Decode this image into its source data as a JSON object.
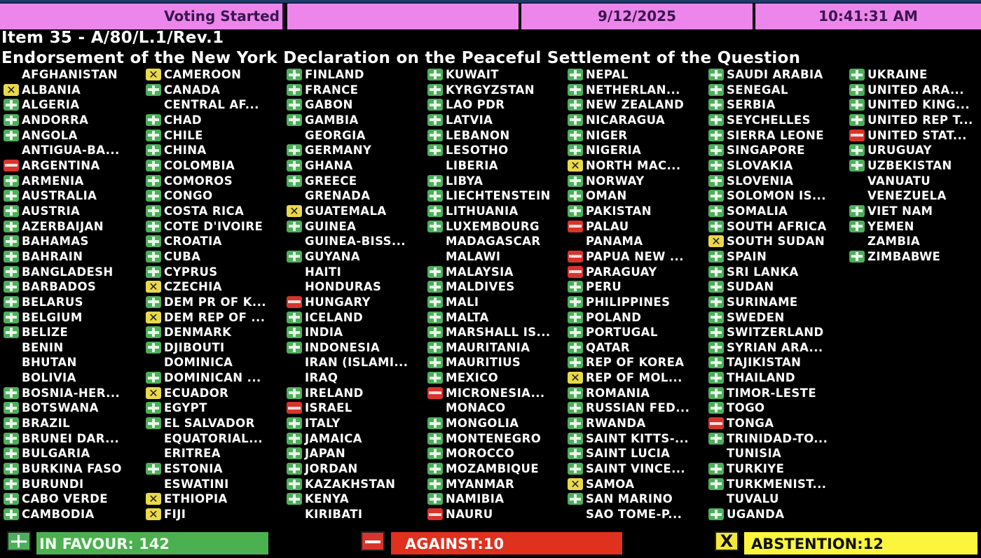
{
  "header": {
    "status": "Voting Started",
    "date": "9/12/2025",
    "time": "10:41:31 AM",
    "bar_color": "#ec86ea"
  },
  "item": {
    "number_line": "Item 35 - A/80/L.1/Rev.1",
    "title": "Endorsement of the New York Declaration on the Peaceful Settlement of the Question"
  },
  "vote_legend": {
    "Y": "plus-icon (in favour, green)",
    "N": "minus-icon (against, red)",
    "A": "x-icon (abstention, yellow)",
    "": "no vote recorded"
  },
  "colors": {
    "in_favour": "#4caf50",
    "against": "#e0301e",
    "abstention": "#fbf63c"
  },
  "columns": [
    [
      {
        "name": "AFGHANISTAN",
        "vote": ""
      },
      {
        "name": "ALBANIA",
        "vote": "A"
      },
      {
        "name": "ALGERIA",
        "vote": "Y"
      },
      {
        "name": "ANDORRA",
        "vote": "Y"
      },
      {
        "name": "ANGOLA",
        "vote": "Y"
      },
      {
        "name": "ANTIGUA-BA...",
        "vote": ""
      },
      {
        "name": "ARGENTINA",
        "vote": "N"
      },
      {
        "name": "ARMENIA",
        "vote": "Y"
      },
      {
        "name": "AUSTRALIA",
        "vote": "Y"
      },
      {
        "name": "AUSTRIA",
        "vote": "Y"
      },
      {
        "name": "AZERBAIJAN",
        "vote": "Y"
      },
      {
        "name": "BAHAMAS",
        "vote": "Y"
      },
      {
        "name": "BAHRAIN",
        "vote": "Y"
      },
      {
        "name": "BANGLADESH",
        "vote": "Y"
      },
      {
        "name": "BARBADOS",
        "vote": "Y"
      },
      {
        "name": "BELARUS",
        "vote": "Y"
      },
      {
        "name": "BELGIUM",
        "vote": "Y"
      },
      {
        "name": "BELIZE",
        "vote": "Y"
      },
      {
        "name": "BENIN",
        "vote": ""
      },
      {
        "name": "BHUTAN",
        "vote": ""
      },
      {
        "name": "BOLIVIA",
        "vote": ""
      },
      {
        "name": "BOSNIA-HER...",
        "vote": "Y"
      },
      {
        "name": "BOTSWANA",
        "vote": "Y"
      },
      {
        "name": "BRAZIL",
        "vote": "Y"
      },
      {
        "name": "BRUNEI DAR...",
        "vote": "Y"
      },
      {
        "name": "BULGARIA",
        "vote": "Y"
      },
      {
        "name": "BURKINA FASO",
        "vote": "Y"
      },
      {
        "name": "BURUNDI",
        "vote": "Y"
      },
      {
        "name": "CABO VERDE",
        "vote": "Y"
      },
      {
        "name": "CAMBODIA",
        "vote": "Y"
      }
    ],
    [
      {
        "name": "CAMEROON",
        "vote": "A"
      },
      {
        "name": "CANADA",
        "vote": "Y"
      },
      {
        "name": "CENTRAL AF...",
        "vote": ""
      },
      {
        "name": "CHAD",
        "vote": "Y"
      },
      {
        "name": "CHILE",
        "vote": "Y"
      },
      {
        "name": "CHINA",
        "vote": "Y"
      },
      {
        "name": "COLOMBIA",
        "vote": "Y"
      },
      {
        "name": "COMOROS",
        "vote": "Y"
      },
      {
        "name": "CONGO",
        "vote": "Y"
      },
      {
        "name": "COSTA RICA",
        "vote": "Y"
      },
      {
        "name": "COTE D'IVOIRE",
        "vote": "Y"
      },
      {
        "name": "CROATIA",
        "vote": "Y"
      },
      {
        "name": "CUBA",
        "vote": "Y"
      },
      {
        "name": "CYPRUS",
        "vote": "Y"
      },
      {
        "name": "CZECHIA",
        "vote": "A"
      },
      {
        "name": "DEM PR OF K...",
        "vote": "Y"
      },
      {
        "name": "DEM REP OF ...",
        "vote": "A"
      },
      {
        "name": "DENMARK",
        "vote": "Y"
      },
      {
        "name": "DJIBOUTI",
        "vote": "Y"
      },
      {
        "name": "DOMINICA",
        "vote": ""
      },
      {
        "name": "DOMINICAN ...",
        "vote": "Y"
      },
      {
        "name": "ECUADOR",
        "vote": "A"
      },
      {
        "name": "EGYPT",
        "vote": "Y"
      },
      {
        "name": "EL SALVADOR",
        "vote": "Y"
      },
      {
        "name": "EQUATORIAL...",
        "vote": ""
      },
      {
        "name": "ERITREA",
        "vote": ""
      },
      {
        "name": "ESTONIA",
        "vote": "Y"
      },
      {
        "name": "ESWATINI",
        "vote": ""
      },
      {
        "name": "ETHIOPIA",
        "vote": "A"
      },
      {
        "name": "FIJI",
        "vote": "A"
      }
    ],
    [
      {
        "name": "FINLAND",
        "vote": "Y"
      },
      {
        "name": "FRANCE",
        "vote": "Y"
      },
      {
        "name": "GABON",
        "vote": "Y"
      },
      {
        "name": "GAMBIA",
        "vote": "Y"
      },
      {
        "name": "GEORGIA",
        "vote": ""
      },
      {
        "name": "GERMANY",
        "vote": "Y"
      },
      {
        "name": "GHANA",
        "vote": "Y"
      },
      {
        "name": "GREECE",
        "vote": "Y"
      },
      {
        "name": "GRENADA",
        "vote": ""
      },
      {
        "name": "GUATEMALA",
        "vote": "A"
      },
      {
        "name": "GUINEA",
        "vote": "Y"
      },
      {
        "name": "GUINEA-BISS...",
        "vote": ""
      },
      {
        "name": "GUYANA",
        "vote": "Y"
      },
      {
        "name": "HAITI",
        "vote": ""
      },
      {
        "name": "HONDURAS",
        "vote": ""
      },
      {
        "name": "HUNGARY",
        "vote": "N"
      },
      {
        "name": "ICELAND",
        "vote": "Y"
      },
      {
        "name": "INDIA",
        "vote": "Y"
      },
      {
        "name": "INDONESIA",
        "vote": "Y"
      },
      {
        "name": "IRAN (ISLAMI...",
        "vote": ""
      },
      {
        "name": "IRAQ",
        "vote": ""
      },
      {
        "name": "IRELAND",
        "vote": "Y"
      },
      {
        "name": "ISRAEL",
        "vote": "N"
      },
      {
        "name": "ITALY",
        "vote": "Y"
      },
      {
        "name": "JAMAICA",
        "vote": "Y"
      },
      {
        "name": "JAPAN",
        "vote": "Y"
      },
      {
        "name": "JORDAN",
        "vote": "Y"
      },
      {
        "name": "KAZAKHSTAN",
        "vote": "Y"
      },
      {
        "name": "KENYA",
        "vote": "Y"
      },
      {
        "name": "KIRIBATI",
        "vote": ""
      }
    ],
    [
      {
        "name": "KUWAIT",
        "vote": "Y"
      },
      {
        "name": "KYRGYZSTAN",
        "vote": "Y"
      },
      {
        "name": "LAO PDR",
        "vote": "Y"
      },
      {
        "name": "LATVIA",
        "vote": "Y"
      },
      {
        "name": "LEBANON",
        "vote": "Y"
      },
      {
        "name": "LESOTHO",
        "vote": "Y"
      },
      {
        "name": "LIBERIA",
        "vote": ""
      },
      {
        "name": "LIBYA",
        "vote": "Y"
      },
      {
        "name": "LIECHTENSTEIN",
        "vote": "Y"
      },
      {
        "name": "LITHUANIA",
        "vote": "Y"
      },
      {
        "name": "LUXEMBOURG",
        "vote": "Y"
      },
      {
        "name": "MADAGASCAR",
        "vote": ""
      },
      {
        "name": "MALAWI",
        "vote": ""
      },
      {
        "name": "MALAYSIA",
        "vote": "Y"
      },
      {
        "name": "MALDIVES",
        "vote": "Y"
      },
      {
        "name": "MALI",
        "vote": "Y"
      },
      {
        "name": "MALTA",
        "vote": "Y"
      },
      {
        "name": "MARSHALL IS...",
        "vote": "Y"
      },
      {
        "name": "MAURITANIA",
        "vote": "Y"
      },
      {
        "name": "MAURITIUS",
        "vote": "Y"
      },
      {
        "name": "MEXICO",
        "vote": "Y"
      },
      {
        "name": "MICRONESIA...",
        "vote": "N"
      },
      {
        "name": "MONACO",
        "vote": ""
      },
      {
        "name": "MONGOLIA",
        "vote": "Y"
      },
      {
        "name": "MONTENEGRO",
        "vote": "Y"
      },
      {
        "name": "MOROCCO",
        "vote": "Y"
      },
      {
        "name": "MOZAMBIQUE",
        "vote": "Y"
      },
      {
        "name": "MYANMAR",
        "vote": "Y"
      },
      {
        "name": "NAMIBIA",
        "vote": "Y"
      },
      {
        "name": "NAURU",
        "vote": "N"
      }
    ],
    [
      {
        "name": "NEPAL",
        "vote": "Y"
      },
      {
        "name": "NETHERLAN...",
        "vote": "Y"
      },
      {
        "name": "NEW ZEALAND",
        "vote": "Y"
      },
      {
        "name": "NICARAGUA",
        "vote": "Y"
      },
      {
        "name": "NIGER",
        "vote": "Y"
      },
      {
        "name": "NIGERIA",
        "vote": "Y"
      },
      {
        "name": "NORTH MAC...",
        "vote": "A"
      },
      {
        "name": "NORWAY",
        "vote": "Y"
      },
      {
        "name": "OMAN",
        "vote": "Y"
      },
      {
        "name": "PAKISTAN",
        "vote": "Y"
      },
      {
        "name": "PALAU",
        "vote": "N"
      },
      {
        "name": "PANAMA",
        "vote": ""
      },
      {
        "name": "PAPUA NEW ...",
        "vote": "N"
      },
      {
        "name": "PARAGUAY",
        "vote": "N"
      },
      {
        "name": "PERU",
        "vote": "Y"
      },
      {
        "name": "PHILIPPINES",
        "vote": "Y"
      },
      {
        "name": "POLAND",
        "vote": "Y"
      },
      {
        "name": "PORTUGAL",
        "vote": "Y"
      },
      {
        "name": "QATAR",
        "vote": "Y"
      },
      {
        "name": "REP OF KOREA",
        "vote": "Y"
      },
      {
        "name": "REP OF MOL...",
        "vote": "A"
      },
      {
        "name": "ROMANIA",
        "vote": "Y"
      },
      {
        "name": "RUSSIAN FED...",
        "vote": "Y"
      },
      {
        "name": "RWANDA",
        "vote": "Y"
      },
      {
        "name": "SAINT KITTS-...",
        "vote": "Y"
      },
      {
        "name": "SAINT LUCIA",
        "vote": "Y"
      },
      {
        "name": "SAINT VINCE...",
        "vote": "Y"
      },
      {
        "name": "SAMOA",
        "vote": "A"
      },
      {
        "name": "SAN MARINO",
        "vote": "Y"
      },
      {
        "name": "SAO TOME-P...",
        "vote": ""
      }
    ],
    [
      {
        "name": "SAUDI ARABIA",
        "vote": "Y"
      },
      {
        "name": "SENEGAL",
        "vote": "Y"
      },
      {
        "name": "SERBIA",
        "vote": "Y"
      },
      {
        "name": "SEYCHELLES",
        "vote": "Y"
      },
      {
        "name": "SIERRA LEONE",
        "vote": "Y"
      },
      {
        "name": "SINGAPORE",
        "vote": "Y"
      },
      {
        "name": "SLOVAKIA",
        "vote": "Y"
      },
      {
        "name": "SLOVENIA",
        "vote": "Y"
      },
      {
        "name": "SOLOMON IS...",
        "vote": "Y"
      },
      {
        "name": "SOMALIA",
        "vote": "Y"
      },
      {
        "name": "SOUTH AFRICA",
        "vote": "Y"
      },
      {
        "name": "SOUTH SUDAN",
        "vote": "A"
      },
      {
        "name": "SPAIN",
        "vote": "Y"
      },
      {
        "name": "SRI LANKA",
        "vote": "Y"
      },
      {
        "name": "SUDAN",
        "vote": "Y"
      },
      {
        "name": "SURINAME",
        "vote": "Y"
      },
      {
        "name": "SWEDEN",
        "vote": "Y"
      },
      {
        "name": "SWITZERLAND",
        "vote": "Y"
      },
      {
        "name": "SYRIAN ARA...",
        "vote": "Y"
      },
      {
        "name": "TAJIKISTAN",
        "vote": "Y"
      },
      {
        "name": "THAILAND",
        "vote": "Y"
      },
      {
        "name": "TIMOR-LESTE",
        "vote": "Y"
      },
      {
        "name": "TOGO",
        "vote": "Y"
      },
      {
        "name": "TONGA",
        "vote": "N"
      },
      {
        "name": "TRINIDAD-TO...",
        "vote": "Y"
      },
      {
        "name": "TUNISIA",
        "vote": ""
      },
      {
        "name": "TURKIYE",
        "vote": "Y"
      },
      {
        "name": "TURKMENIST...",
        "vote": "Y"
      },
      {
        "name": "TUVALU",
        "vote": ""
      },
      {
        "name": "UGANDA",
        "vote": "Y"
      }
    ],
    [
      {
        "name": "UKRAINE",
        "vote": "Y"
      },
      {
        "name": "UNITED ARA...",
        "vote": "Y"
      },
      {
        "name": "UNITED KING...",
        "vote": "Y"
      },
      {
        "name": "UNITED REP T...",
        "vote": "Y"
      },
      {
        "name": "UNITED STAT...",
        "vote": "N"
      },
      {
        "name": "URUGUAY",
        "vote": "Y"
      },
      {
        "name": "UZBEKISTAN",
        "vote": "Y"
      },
      {
        "name": "VANUATU",
        "vote": ""
      },
      {
        "name": "VENEZUELA",
        "vote": ""
      },
      {
        "name": "VIET NAM",
        "vote": "Y"
      },
      {
        "name": "YEMEN",
        "vote": "Y"
      },
      {
        "name": "ZAMBIA",
        "vote": ""
      },
      {
        "name": "ZIMBABWE",
        "vote": "Y"
      }
    ]
  ],
  "totals": {
    "in_favour": "IN FAVOUR: 142",
    "against": "AGAINST:10",
    "abstention": "ABSTENTION:12",
    "abstention_icon_glyph": "X"
  }
}
